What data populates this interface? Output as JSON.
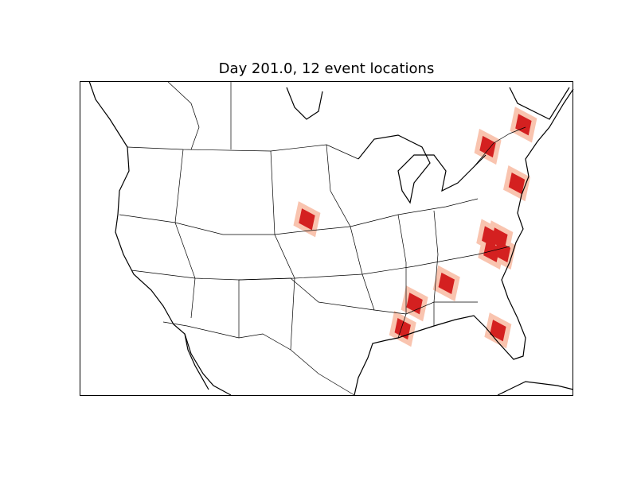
{
  "title": "Day 201.0, 12 event locations",
  "colors": {
    "event_core": "#d42020",
    "event_halo": "#f9c4af",
    "land_outline": "#000000",
    "background": "#ffffff"
  },
  "map": {
    "projection": "lambert-conformal",
    "region": "North America (contiguous US)"
  },
  "events": [
    {
      "lon": -98.0,
      "lat": 41.0
    },
    {
      "lon": -69.5,
      "lat": 45.5
    },
    {
      "lon": -74.5,
      "lat": 44.2
    },
    {
      "lon": -73.0,
      "lat": 40.5
    },
    {
      "lon": -78.5,
      "lat": 36.3
    },
    {
      "lon": -77.5,
      "lat": 36.0
    },
    {
      "lon": -79.0,
      "lat": 35.0
    },
    {
      "lon": -77.8,
      "lat": 34.8
    },
    {
      "lon": -85.5,
      "lat": 33.0
    },
    {
      "lon": -90.0,
      "lat": 31.8
    },
    {
      "lon": -92.5,
      "lat": 29.8
    },
    {
      "lon": -82.0,
      "lat": 28.0
    }
  ]
}
